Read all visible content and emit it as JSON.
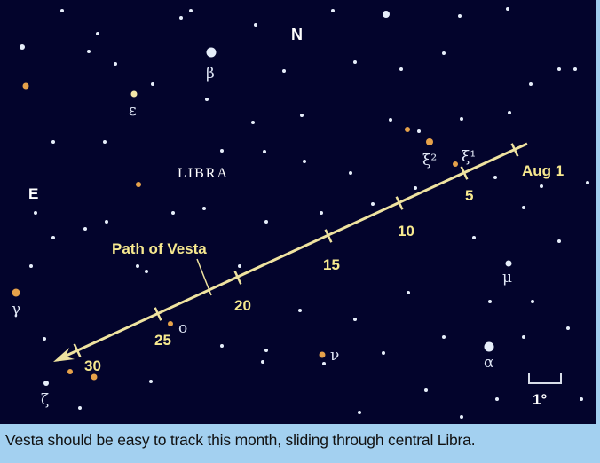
{
  "map": {
    "direction_north": "N",
    "direction_east": "E",
    "constellation": "LIBRA",
    "path_label": "Path of Vesta",
    "path_dates": [
      "Aug 1",
      "5",
      "10",
      "15",
      "20",
      "25",
      "30"
    ],
    "star_labels": {
      "beta": "β",
      "epsilon": "ε",
      "xi2": "ξ²",
      "xi1": "ξ¹",
      "mu": "μ",
      "alpha": "α",
      "nu": "ν",
      "omicron": "o",
      "gamma": "γ",
      "zeta": "ζ"
    },
    "scale_label": "1°",
    "colors": {
      "sky": "#03042c",
      "path": "#efe3a0",
      "date_label": "#f7e98f",
      "star_white": "#e6eefa",
      "star_orange": "#e6a24a"
    }
  },
  "caption": "Vesta should be easy to track this month, sliding through central Libra."
}
